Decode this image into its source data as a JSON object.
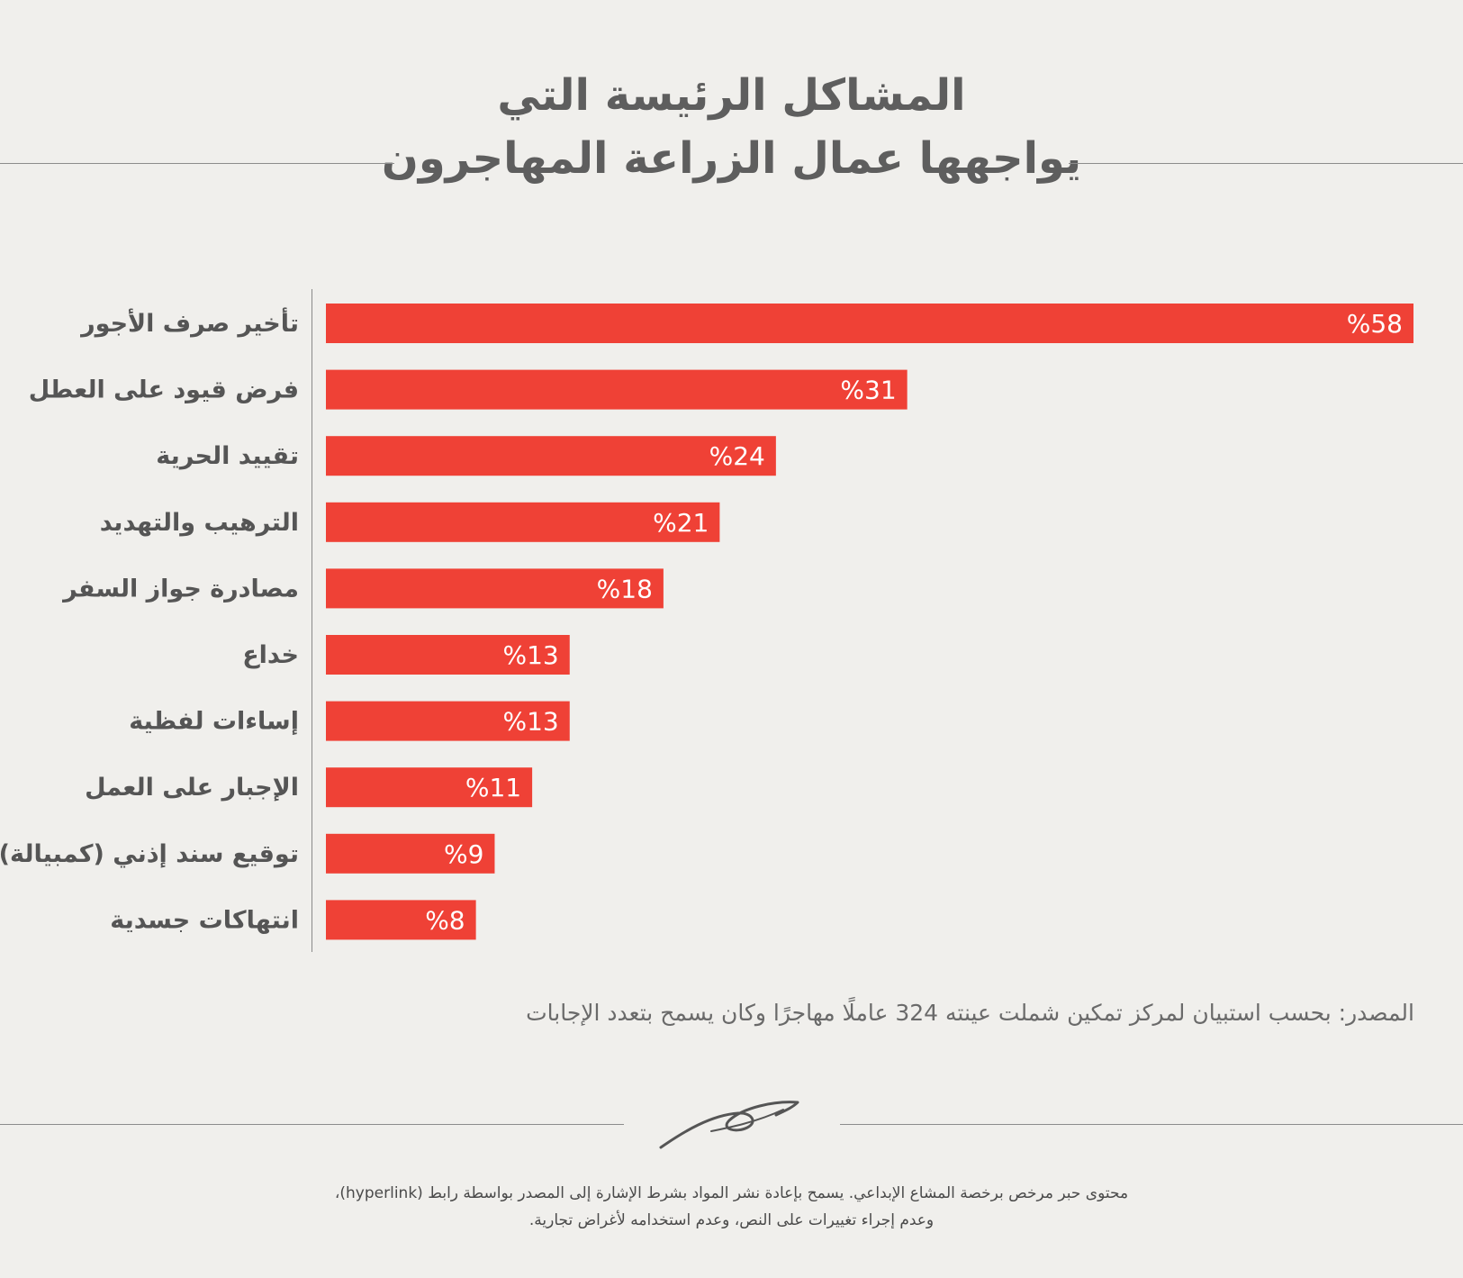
{
  "header": {
    "title_line_1": "المشاكل الرئيسة التي",
    "title_line_2": "يواجهها عمال الزراعة المهاجرون"
  },
  "chart_data": {
    "type": "bar",
    "orientation": "horizontal",
    "title": "المشاكل الرئيسة التي يواجهها عمال الزراعة المهاجرون",
    "categories": [
      "تأخير صرف الأجور",
      "فرض قيود على العطل",
      "تقييد الحرية",
      "الترهيب والتهديد",
      "مصادرة جواز السفر",
      "خداع",
      "إساءات لفظية",
      "الإجبار على العمل",
      "توقيع سند إذني (كمبيالة)",
      "انتهاكات جسدية"
    ],
    "values": [
      58,
      31,
      24,
      21,
      18,
      13,
      13,
      11,
      9,
      8
    ],
    "value_labels": [
      "%58",
      "%31",
      "%24",
      "%21",
      "%18",
      "%13",
      "%13",
      "%11",
      "%9",
      "%8"
    ],
    "unit": "%",
    "xlim": [
      0,
      58
    ],
    "bar_color": "#ef4136",
    "label_color": "#ffffff",
    "grid": false,
    "legend": "none"
  },
  "source_text": "المصدر: بحسب استبيان لمركز تمكين شملت عينته 324 عاملًا مهاجرًا وكان يسمح بتعدد الإجابات",
  "footer": {
    "license_line_1": "محتوى حبر مرخص برخصة المشاع الإبداعي. يسمح بإعادة نشر المواد بشرط الإشارة إلى المصدر بواسطة رابط (hyperlink)،",
    "license_line_2": "وعدم إجراء تغييرات على النص، وعدم استخدامه لأغراض تجارية.",
    "logo_text": "حبر"
  },
  "colors": {
    "background": "#f0efec",
    "title": "#5e5e5e",
    "text": "#5c5c5c",
    "accent": "#ef4136"
  }
}
